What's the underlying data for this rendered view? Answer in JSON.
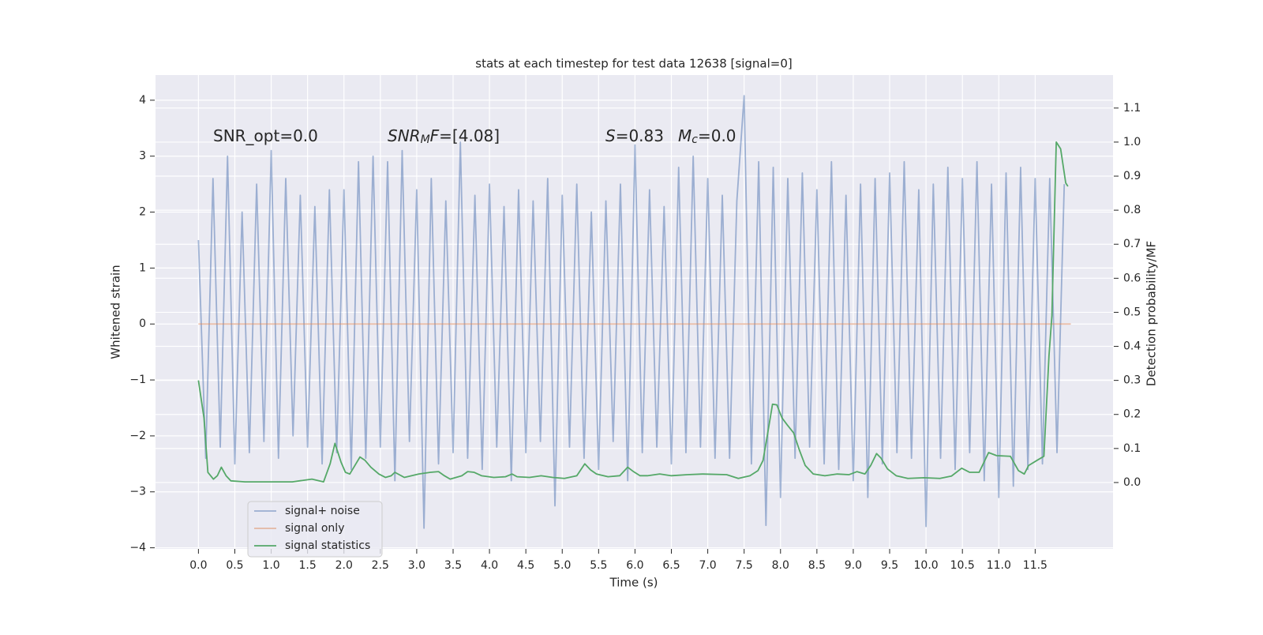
{
  "chart_data": {
    "type": "line",
    "title": "stats at each timestep for test data 12638 [signal=0]",
    "xlabel": "Time (s)",
    "ylabel": "Whitened strain",
    "y2label": "Detection probability/MF",
    "xlim": [
      -0.59,
      12.57
    ],
    "ylim": [
      -4.02,
      4.45
    ],
    "y2lim": [
      -0.195,
      1.197
    ],
    "xticks": [
      {
        "value": 0,
        "label": "0.0"
      },
      0.5,
      {
        "value": 1,
        "label": "1.0"
      },
      1.5,
      {
        "value": 2,
        "label": "2.0"
      },
      2.5,
      {
        "value": 3,
        "label": "3.0"
      },
      3.5,
      {
        "value": 4,
        "label": "4.0"
      },
      4.5,
      {
        "value": 5,
        "label": "5.0"
      },
      5.5,
      {
        "value": 6,
        "label": "6.0"
      },
      6.5,
      {
        "value": 7,
        "label": "7.0"
      },
      7.5,
      {
        "value": 8,
        "label": "8.0"
      },
      8.5,
      {
        "value": 9,
        "label": "9.0"
      },
      9.5,
      {
        "value": 10,
        "label": "10.0"
      },
      10.5,
      {
        "value": 11,
        "label": "11.0"
      },
      11.5
    ],
    "yticks": [
      {
        "value": -4,
        "label": "−4"
      },
      {
        "value": -3,
        "label": "−3"
      },
      {
        "value": -2,
        "label": "−2"
      },
      {
        "value": -1,
        "label": "−1"
      },
      0,
      1,
      2,
      3,
      4
    ],
    "y2ticks": [
      {
        "value": 0,
        "label": "0.0"
      },
      0.1,
      0.2,
      0.3,
      0.4,
      0.5,
      0.6,
      0.7,
      0.8,
      0.9,
      {
        "value": 1,
        "label": "1.0"
      },
      1.1
    ],
    "grid": true,
    "legend": "lower left",
    "annotations": [
      [
        [
          "SNR_opt=0.0",
          "n"
        ]
      ],
      [
        [
          "SNR",
          "i"
        ],
        [
          "M",
          "sub"
        ],
        [
          "F",
          "i"
        ],
        [
          "=[4.08]",
          "n"
        ]
      ],
      [
        [
          "S",
          "i"
        ],
        [
          "=0.83",
          "n"
        ]
      ],
      [
        [
          "M",
          "i"
        ],
        [
          "c",
          "sub"
        ],
        [
          "=0.0",
          "n"
        ]
      ]
    ],
    "series": [
      {
        "name": "signal+ noise",
        "color": "#4c72b0",
        "alpha": 0.5,
        "x": [
          0.0,
          0.1,
          0.2,
          0.3,
          0.4,
          0.5,
          0.6,
          0.7,
          0.8,
          0.9,
          1.0,
          1.1,
          1.2,
          1.3,
          1.4,
          1.5,
          1.6,
          1.7,
          1.8,
          1.9,
          2.0,
          2.1,
          2.2,
          2.3,
          2.4,
          2.5,
          2.6,
          2.7,
          2.8,
          2.9,
          3.0,
          3.1,
          3.2,
          3.3,
          3.4,
          3.5,
          3.6,
          3.7,
          3.8,
          3.9,
          4.0,
          4.1,
          4.2,
          4.3,
          4.4,
          4.5,
          4.6,
          4.7,
          4.8,
          4.9,
          5.0,
          5.1,
          5.2,
          5.3,
          5.4,
          5.5,
          5.6,
          5.7,
          5.8,
          5.9,
          6.0,
          6.1,
          6.2,
          6.3,
          6.4,
          6.5,
          6.6,
          6.7,
          6.8,
          6.9,
          7.0,
          7.1,
          7.2,
          7.3,
          7.4,
          7.5,
          7.6,
          7.7,
          7.8,
          7.9,
          8.0,
          8.1,
          8.2,
          8.3,
          8.4,
          8.5,
          8.6,
          8.7,
          8.8,
          8.9,
          9.0,
          9.1,
          9.2,
          9.3,
          9.4,
          9.5,
          9.6,
          9.7,
          9.8,
          9.9,
          10.0,
          10.1,
          10.2,
          10.3,
          10.4,
          10.5,
          10.6,
          10.7,
          10.8,
          10.9,
          11.0,
          11.1,
          11.2,
          11.3,
          11.4,
          11.5,
          11.6,
          11.7,
          11.8,
          11.9
        ],
        "values": [
          1.5,
          -2.4,
          2.6,
          -2.2,
          3.0,
          -2.5,
          2.0,
          -2.3,
          2.5,
          -2.1,
          3.1,
          -2.4,
          2.6,
          -2.0,
          2.3,
          -2.2,
          2.1,
          -2.5,
          2.4,
          -2.3,
          2.4,
          -2.6,
          2.9,
          -2.4,
          3.0,
          -2.2,
          2.9,
          -2.8,
          3.1,
          -2.1,
          2.4,
          -3.65,
          2.6,
          -2.5,
          2.2,
          -2.3,
          3.25,
          -2.4,
          2.3,
          -2.6,
          2.5,
          -2.2,
          2.1,
          -2.8,
          2.4,
          -2.3,
          2.2,
          -2.1,
          2.6,
          -3.25,
          2.3,
          -2.2,
          2.5,
          -2.4,
          2.0,
          -2.6,
          2.2,
          -2.1,
          2.5,
          -2.8,
          3.2,
          -2.3,
          2.4,
          -2.2,
          2.1,
          -2.5,
          2.8,
          -2.3,
          3.0,
          -2.2,
          2.6,
          -2.4,
          2.3,
          -2.4,
          2.2,
          4.08,
          -2.5,
          2.9,
          -3.6,
          2.8,
          -3.1,
          2.6,
          -2.4,
          2.7,
          -2.2,
          2.4,
          -2.5,
          2.9,
          -2.6,
          2.3,
          -2.8,
          2.5,
          -3.1,
          2.6,
          -2.5,
          2.7,
          -2.3,
          2.9,
          -2.4,
          2.4,
          -3.62,
          2.5,
          -2.4,
          2.8,
          -2.6,
          2.6,
          -2.3,
          2.9,
          -2.8,
          2.5,
          -3.1,
          2.7,
          -2.9,
          2.8,
          -2.6,
          2.6,
          -2.5,
          2.6,
          -2.3,
          2.5
        ]
      },
      {
        "name": "signal only",
        "color": "#dd8452",
        "alpha": 0.5,
        "x": [
          0.0,
          11.99
        ],
        "values": [
          0,
          0
        ]
      },
      {
        "name": "signal statistics",
        "color": "#55a868",
        "alpha": 1,
        "axis": "y2",
        "x": [
          0.0,
          0.076,
          0.13,
          0.206,
          0.26,
          0.315,
          0.38,
          0.445,
          0.64,
          0.966,
          1.29,
          1.56,
          1.72,
          1.81,
          1.876,
          1.96,
          2.02,
          2.08,
          2.15,
          2.22,
          2.29,
          2.37,
          2.48,
          2.57,
          2.65,
          2.7,
          2.83,
          3.03,
          3.19,
          3.3,
          3.38,
          3.46,
          3.62,
          3.7,
          3.79,
          3.89,
          4.06,
          4.22,
          4.31,
          4.38,
          4.55,
          4.71,
          4.87,
          5.03,
          5.2,
          5.31,
          5.39,
          5.47,
          5.63,
          5.79,
          5.9,
          5.98,
          6.07,
          6.17,
          6.34,
          6.5,
          6.72,
          6.93,
          7.26,
          7.42,
          7.58,
          7.69,
          7.76,
          7.82,
          7.89,
          7.95,
          8.02,
          8.09,
          8.18,
          8.26,
          8.34,
          8.45,
          8.61,
          8.78,
          8.94,
          9.05,
          9.16,
          9.24,
          9.32,
          9.38,
          9.47,
          9.59,
          9.75,
          9.97,
          10.19,
          10.35,
          10.49,
          10.6,
          10.73,
          10.86,
          10.97,
          11.16,
          11.27,
          11.35,
          11.41,
          11.54,
          11.62,
          11.69,
          11.73,
          11.79,
          11.85,
          11.92,
          11.95
        ],
        "values": [
          0.3,
          0.19,
          0.03,
          0.01,
          0.02,
          0.045,
          0.02,
          0.005,
          0.002,
          0.002,
          0.002,
          0.01,
          0.002,
          0.055,
          0.115,
          0.06,
          0.03,
          0.025,
          0.05,
          0.075,
          0.065,
          0.045,
          0.025,
          0.015,
          0.02,
          0.03,
          0.015,
          0.025,
          0.03,
          0.032,
          0.02,
          0.01,
          0.02,
          0.032,
          0.03,
          0.02,
          0.015,
          0.017,
          0.025,
          0.017,
          0.015,
          0.02,
          0.015,
          0.012,
          0.02,
          0.055,
          0.037,
          0.025,
          0.017,
          0.02,
          0.045,
          0.032,
          0.02,
          0.02,
          0.025,
          0.02,
          0.023,
          0.025,
          0.023,
          0.012,
          0.02,
          0.035,
          0.065,
          0.14,
          0.23,
          0.228,
          0.19,
          0.17,
          0.146,
          0.095,
          0.05,
          0.025,
          0.02,
          0.025,
          0.023,
          0.032,
          0.025,
          0.05,
          0.085,
          0.072,
          0.04,
          0.02,
          0.012,
          0.014,
          0.012,
          0.019,
          0.042,
          0.03,
          0.03,
          0.088,
          0.079,
          0.077,
          0.035,
          0.025,
          0.05,
          0.067,
          0.077,
          0.373,
          0.49,
          1.0,
          0.98,
          0.88,
          0.87
        ]
      }
    ]
  }
}
